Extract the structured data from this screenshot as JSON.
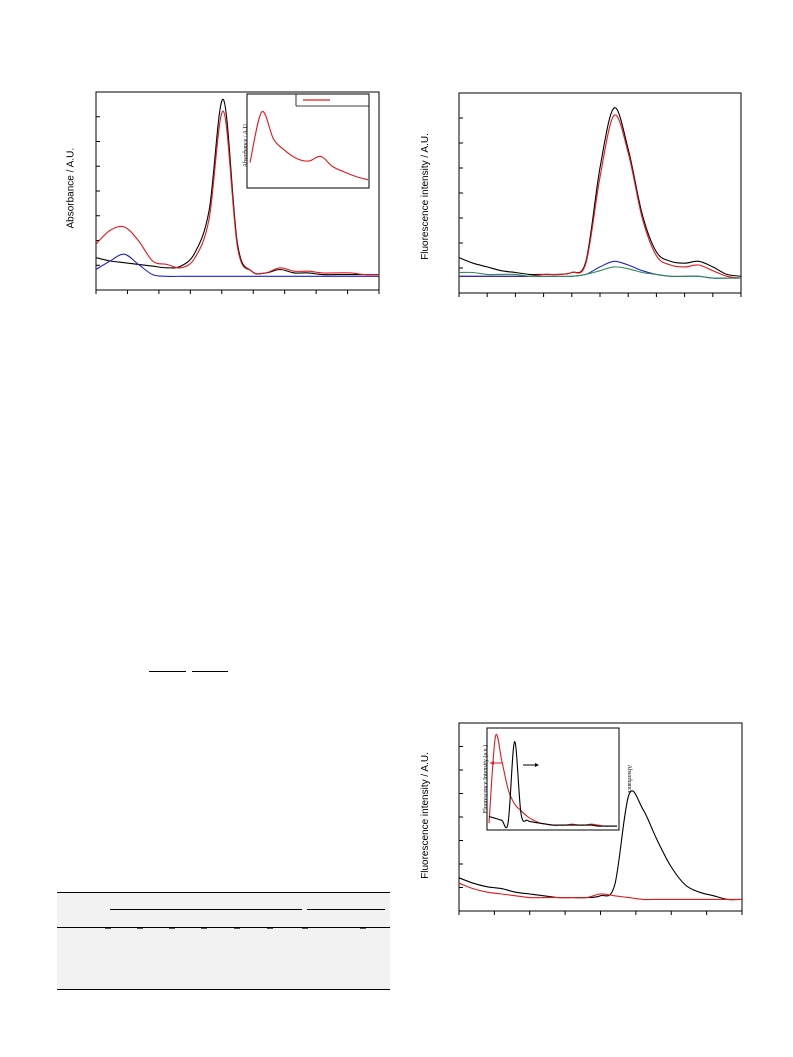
{
  "figures": {
    "absorbance": {
      "ylabel": "Absorbance / A.U.",
      "inset": {
        "ylabel": "Absorbance / A.U."
      }
    },
    "fluorescence_top": {
      "ylabel": "Fluorescence intensity / A.U."
    },
    "fluorescence_bottom": {
      "ylabel": "Fluorescence intensity / A.U.",
      "inset": {
        "ylabel_left": "Fluorescence Intensity (a.u.)",
        "ylabel_right": "Absorbance"
      }
    }
  },
  "colors": {
    "black": "#000000",
    "red": "#e3191c",
    "blue": "#2222cc",
    "green": "#2e8b57"
  },
  "chart_data": [
    {
      "type": "line",
      "title": "",
      "xlabel": "",
      "ylabel": "Absorbance / A.U.",
      "x": [
        0,
        5,
        10,
        15,
        20,
        25,
        30,
        35,
        40,
        45,
        50,
        55,
        60,
        65,
        70,
        75,
        80,
        85,
        90,
        95,
        100
      ],
      "series": [
        {
          "color": "#000000",
          "values": [
            0.12,
            0.1,
            0.09,
            0.08,
            0.07,
            0.06,
            0.07,
            0.15,
            0.4,
            1.05,
            0.2,
            0.04,
            0.03,
            0.05,
            0.03,
            0.03,
            0.02,
            0.02,
            0.02,
            0.02,
            0.02
          ]
        },
        {
          "color": "#e3191c",
          "values": [
            0.2,
            0.28,
            0.3,
            0.22,
            0.1,
            0.08,
            0.06,
            0.12,
            0.35,
            0.98,
            0.18,
            0.04,
            0.03,
            0.06,
            0.04,
            0.04,
            0.03,
            0.03,
            0.03,
            0.02,
            0.02
          ]
        },
        {
          "color": "#2222cc",
          "values": [
            0.05,
            0.1,
            0.14,
            0.08,
            0.02,
            0.01,
            0.01,
            0.01,
            0.01,
            0.01,
            0.01,
            0.01,
            0.01,
            0.01,
            0.01,
            0.01,
            0.01,
            0.01,
            0.01,
            0.01,
            0.01
          ]
        }
      ],
      "inset": {
        "type": "line",
        "x": [
          0,
          1,
          2,
          3,
          4,
          5,
          6,
          7,
          8,
          9,
          10
        ],
        "series": [
          {
            "color": "#e3191c",
            "values": [
              0.3,
              0.95,
              0.6,
              0.45,
              0.35,
              0.32,
              0.38,
              0.25,
              0.18,
              0.12,
              0.08
            ]
          }
        ]
      }
    },
    {
      "type": "line",
      "title": "",
      "xlabel": "",
      "ylabel": "Fluorescence intensity / A.U.",
      "x": [
        0,
        5,
        10,
        15,
        20,
        25,
        30,
        35,
        40,
        45,
        50,
        55,
        60,
        65,
        70,
        75,
        80,
        85,
        90,
        95,
        100
      ],
      "series": [
        {
          "color": "#000000",
          "values": [
            0.12,
            0.09,
            0.07,
            0.05,
            0.04,
            0.03,
            0.03,
            0.03,
            0.04,
            0.1,
            0.6,
            0.92,
            0.7,
            0.35,
            0.15,
            0.1,
            0.09,
            0.1,
            0.07,
            0.03,
            0.02
          ]
        },
        {
          "color": "#e3191c",
          "values": [
            0.02,
            0.02,
            0.02,
            0.02,
            0.02,
            0.02,
            0.03,
            0.03,
            0.04,
            0.09,
            0.55,
            0.88,
            0.68,
            0.33,
            0.13,
            0.08,
            0.07,
            0.08,
            0.05,
            0.02,
            0.01
          ]
        },
        {
          "color": "#2222cc",
          "values": [
            0.02,
            0.02,
            0.02,
            0.02,
            0.02,
            0.02,
            0.02,
            0.02,
            0.02,
            0.03,
            0.07,
            0.1,
            0.08,
            0.05,
            0.03,
            0.02,
            0.02,
            0.02,
            0.01,
            0.01,
            0.01
          ]
        },
        {
          "color": "#2e8b57",
          "values": [
            0.04,
            0.04,
            0.03,
            0.03,
            0.03,
            0.02,
            0.02,
            0.02,
            0.02,
            0.03,
            0.05,
            0.07,
            0.06,
            0.04,
            0.03,
            0.02,
            0.02,
            0.02,
            0.01,
            0.01,
            0.01
          ]
        }
      ]
    },
    {
      "type": "line",
      "title": "",
      "xlabel": "",
      "ylabel": "Fluorescence intensity / A.U.",
      "x": [
        0,
        5,
        10,
        15,
        20,
        25,
        30,
        35,
        40,
        45,
        50,
        55,
        60,
        65,
        70,
        75,
        80,
        85,
        90,
        95,
        100
      ],
      "series": [
        {
          "color": "#000000",
          "values": [
            0.14,
            0.11,
            0.09,
            0.08,
            0.06,
            0.05,
            0.04,
            0.03,
            0.03,
            0.03,
            0.04,
            0.1,
            0.6,
            0.52,
            0.35,
            0.2,
            0.1,
            0.06,
            0.04,
            0.02,
            0.02
          ]
        },
        {
          "color": "#e3191c",
          "values": [
            0.11,
            0.08,
            0.06,
            0.05,
            0.04,
            0.03,
            0.03,
            0.03,
            0.03,
            0.03,
            0.05,
            0.04,
            0.03,
            0.02,
            0.02,
            0.02,
            0.02,
            0.02,
            0.02,
            0.02,
            0.02
          ]
        }
      ],
      "inset": {
        "type": "line",
        "x": [
          0,
          1,
          2,
          3,
          4,
          5,
          6,
          7,
          8,
          9,
          10,
          11,
          12,
          13,
          14,
          15,
          16,
          17,
          18,
          19,
          20
        ],
        "series": [
          {
            "color": "#e3191c",
            "values": [
              0.05,
              0.95,
              0.7,
              0.4,
              0.25,
              0.18,
              0.12,
              0.08,
              0.05,
              0.04,
              0.03,
              0.03,
              0.03,
              0.04,
              0.03,
              0.03,
              0.04,
              0.03,
              0.02,
              0.02,
              0.02
            ]
          },
          {
            "color": "#000000",
            "values": [
              0.12,
              0.1,
              0.08,
              0.06,
              0.9,
              0.15,
              0.08,
              0.06,
              0.05,
              0.04,
              0.03,
              0.03,
              0.03,
              0.03,
              0.03,
              0.03,
              0.03,
              0.02,
              0.02,
              0.02,
              0.02
            ]
          }
        ]
      }
    }
  ]
}
